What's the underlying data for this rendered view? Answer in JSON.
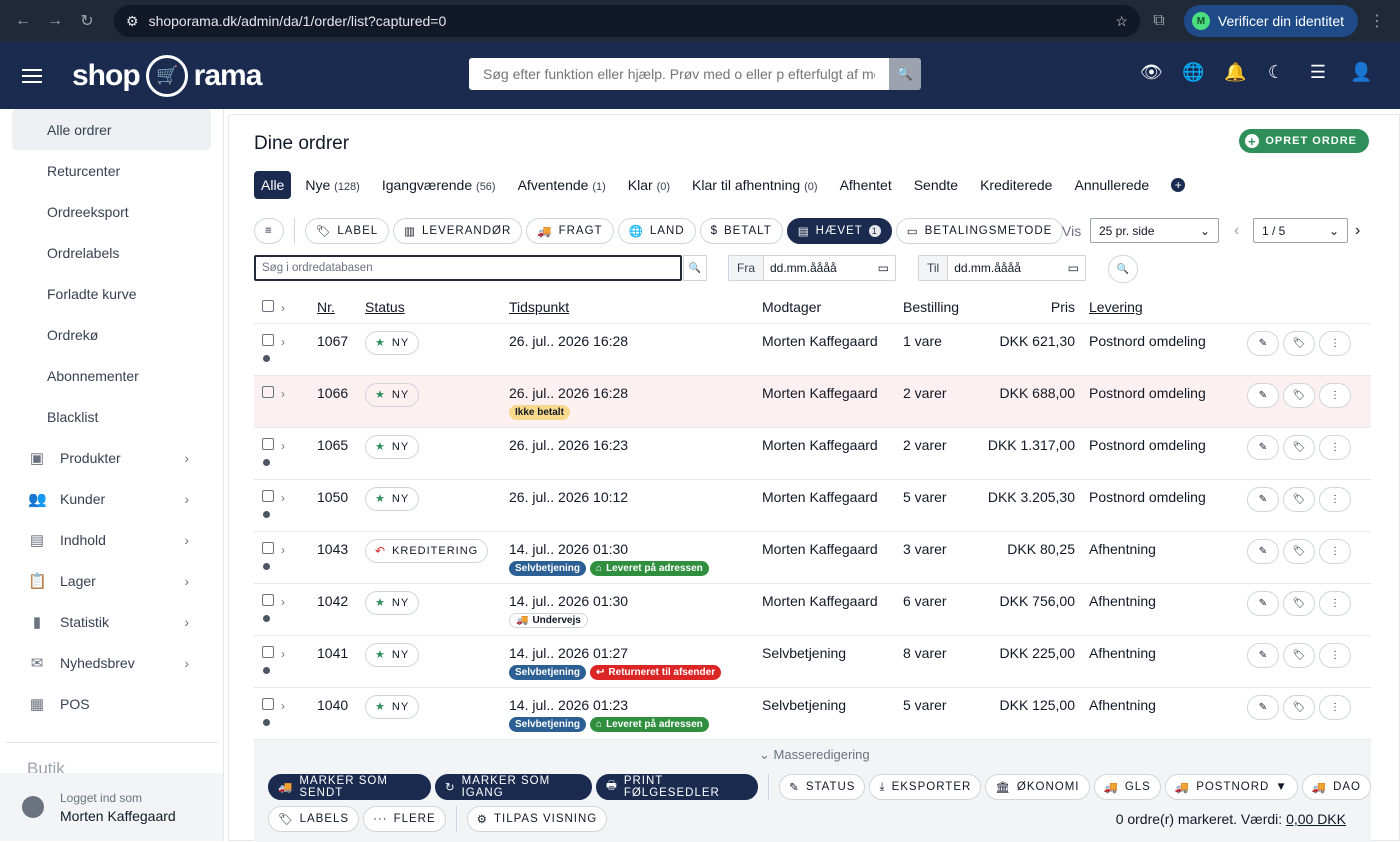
{
  "browser": {
    "url": "shoporama.dk/admin/da/1/order/list?captured=0",
    "verify": "Verificer din identitet",
    "avatar": "M"
  },
  "header": {
    "logo_left": "shop",
    "logo_right": "rama",
    "search_placeholder": "Søg efter funktion eller hjælp. Prøv med o eller p efterfulgt af mellemrum"
  },
  "sidebar": {
    "items": [
      "Alle ordrer",
      "Returcenter",
      "Ordreeksport",
      "Ordrelabels",
      "Forladte kurve",
      "Ordrekø",
      "Abonnementer",
      "Blacklist"
    ],
    "groups": [
      "Produkter",
      "Kunder",
      "Indhold",
      "Lager",
      "Statistik",
      "Nyhedsbrev",
      "POS"
    ],
    "section": "Butik",
    "logged_label": "Logget ind som",
    "logged_user": "Morten Kaffegaard"
  },
  "main": {
    "title": "Dine ordrer",
    "create": "OPRET ORDRE",
    "tabs": [
      {
        "label": "Alle",
        "count": ""
      },
      {
        "label": "Nye",
        "count": "(128)"
      },
      {
        "label": "Igangværende",
        "count": "(56)"
      },
      {
        "label": "Afventende",
        "count": "(1)"
      },
      {
        "label": "Klar",
        "count": "(0)"
      },
      {
        "label": "Klar til afhentning",
        "count": "(0)"
      },
      {
        "label": "Afhentet",
        "count": ""
      },
      {
        "label": "Sendte",
        "count": ""
      },
      {
        "label": "Krediterede",
        "count": ""
      },
      {
        "label": "Annullerede",
        "count": ""
      }
    ],
    "filters": [
      "LABEL",
      "LEVERANDØR",
      "FRAGT",
      "LAND",
      "BETALT",
      "HÆVET",
      "BETALINGSMETODE"
    ],
    "filter_count": "1",
    "vis_label": "Vis",
    "per_page": "25 pr. side",
    "page": "1 / 5",
    "db_search_placeholder": "Søg i ordredatabasen",
    "from_label": "Fra",
    "to_label": "Til",
    "date_placeholder": "dd.mm.åååå"
  },
  "table": {
    "headers": [
      "Nr.",
      "Status",
      "Tidspunkt",
      "Modtager",
      "Bestilling",
      "Pris",
      "Levering"
    ],
    "rows": [
      {
        "nr": "1067",
        "status": "NY",
        "time": "26. jul.. 2026 16:28",
        "recipient": "Morten Kaffegaard",
        "order": "1 vare",
        "price": "DKK 621,30",
        "delivery": "Postnord omdeling"
      },
      {
        "nr": "1066",
        "status": "NY",
        "time": "26. jul.. 2026 16:28",
        "badge1": "Ikke betalt",
        "recipient": "Morten Kaffegaard",
        "order": "2 varer",
        "price": "DKK 688,00",
        "delivery": "Postnord omdeling"
      },
      {
        "nr": "1065",
        "status": "NY",
        "time": "26. jul.. 2026 16:23",
        "recipient": "Morten Kaffegaard",
        "order": "2 varer",
        "price": "DKK 1.317,00",
        "delivery": "Postnord omdeling"
      },
      {
        "nr": "1050",
        "status": "NY",
        "time": "26. jul.. 2026 10:12",
        "recipient": "Morten Kaffegaard",
        "order": "5 varer",
        "price": "DKK 3.205,30",
        "delivery": "Postnord omdeling"
      },
      {
        "nr": "1043",
        "status": "KREDITERING",
        "time": "14. jul.. 2026 01:30",
        "badge1": "Selvbetjening",
        "badge2": "Leveret på adressen",
        "recipient": "Morten Kaffegaard",
        "order": "3 varer",
        "price": "DKK 80,25",
        "delivery": "Afhentning"
      },
      {
        "nr": "1042",
        "status": "NY",
        "time": "14. jul.. 2026 01:30",
        "badge1": "Undervejs",
        "recipient": "Morten Kaffegaard",
        "order": "6 varer",
        "price": "DKK 756,00",
        "delivery": "Afhentning"
      },
      {
        "nr": "1041",
        "status": "NY",
        "time": "14. jul.. 2026 01:27",
        "badge1": "Selvbetjening",
        "badge2": "Returneret til afsender",
        "recipient": "Selvbetjening",
        "order": "8 varer",
        "price": "DKK 225,00",
        "delivery": "Afhentning"
      },
      {
        "nr": "1040",
        "status": "NY",
        "time": "14. jul.. 2026 01:23",
        "badge1": "Selvbetjening",
        "badge2": "Leveret på adressen",
        "recipient": "Selvbetjening",
        "order": "5 varer",
        "price": "DKK 125,00",
        "delivery": "Afhentning"
      }
    ]
  },
  "mass": {
    "label": "Masseredigering",
    "row1": [
      "MARKER SOM SENDT",
      "MARKER SOM IGANG",
      "PRINT FØLGESEDLER",
      "STATUS",
      "EKSPORTER",
      "ØKONOMI",
      "GLS",
      "POSTNORD",
      "DAO"
    ],
    "row2": [
      "LABELS",
      "FLERE",
      "TILPAS VISNING"
    ],
    "total_prefix": "0 ordre(r) markeret. Værdi:",
    "total_value": "0,00 DKK"
  }
}
